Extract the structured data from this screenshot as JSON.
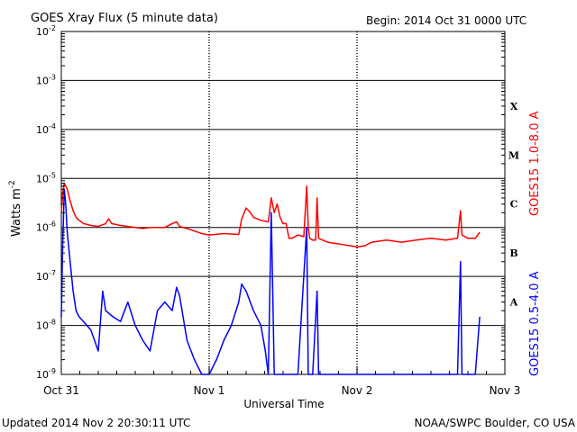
{
  "header": {
    "title": "GOES Xray Flux (5 minute data)",
    "begin": "Begin:  2014 Oct 31 0000 UTC"
  },
  "footer": {
    "updated": "Updated 2014 Nov  2 20:30:11 UTC",
    "source": "NOAA/SWPC Boulder, CO USA"
  },
  "chart_data": {
    "type": "line",
    "title": "GOES Xray Flux (5 minute data)",
    "xlabel": "Universal Time",
    "ylabel": "Watts m",
    "ylabel_sup": "-2",
    "y_scale": "log",
    "ylim": [
      1e-09,
      0.01
    ],
    "xlim": [
      0,
      3
    ],
    "x_tick_labels": [
      "Oct 31",
      "Nov 1",
      "Nov 2",
      "Nov 3"
    ],
    "y_ticks": [
      {
        "base": "10",
        "exp": "-2"
      },
      {
        "base": "10",
        "exp": "-3"
      },
      {
        "base": "10",
        "exp": "-4"
      },
      {
        "base": "10",
        "exp": "-5"
      },
      {
        "base": "10",
        "exp": "-6"
      },
      {
        "base": "10",
        "exp": "-7"
      },
      {
        "base": "10",
        "exp": "-8"
      },
      {
        "base": "10",
        "exp": "-9"
      }
    ],
    "flare_classes": [
      "X",
      "M",
      "C",
      "B",
      "A"
    ],
    "grid": true,
    "series": [
      {
        "name": "GOES15 1.0-8.0 A",
        "color": "#ff0000",
        "points": [
          [
            0.0,
            2e-06
          ],
          [
            0.01,
            5e-06
          ],
          [
            0.02,
            8e-06
          ],
          [
            0.03,
            7e-06
          ],
          [
            0.04,
            6e-06
          ],
          [
            0.06,
            3.5e-06
          ],
          [
            0.08,
            2.2e-06
          ],
          [
            0.1,
            1.6e-06
          ],
          [
            0.12,
            1.4e-06
          ],
          [
            0.15,
            1.2e-06
          ],
          [
            0.2,
            1.1e-06
          ],
          [
            0.25,
            1.05e-06
          ],
          [
            0.3,
            1.2e-06
          ],
          [
            0.32,
            1.5e-06
          ],
          [
            0.34,
            1.2e-06
          ],
          [
            0.4,
            1.1e-06
          ],
          [
            0.45,
            1.05e-06
          ],
          [
            0.5,
            1e-06
          ],
          [
            0.55,
            9.5e-07
          ],
          [
            0.6,
            1e-06
          ],
          [
            0.65,
            1e-06
          ],
          [
            0.7,
            1e-06
          ],
          [
            0.75,
            1.2e-06
          ],
          [
            0.78,
            1.3e-06
          ],
          [
            0.8,
            1.05e-06
          ],
          [
            0.85,
            9.5e-07
          ],
          [
            0.9,
            8.5e-07
          ],
          [
            0.95,
            7.5e-07
          ],
          [
            1.0,
            7e-07
          ],
          [
            1.1,
            7.5e-07
          ],
          [
            1.2,
            7.2e-07
          ],
          [
            1.22,
            1.5e-06
          ],
          [
            1.25,
            2.5e-06
          ],
          [
            1.28,
            2e-06
          ],
          [
            1.3,
            1.6e-06
          ],
          [
            1.35,
            1.4e-06
          ],
          [
            1.4,
            1.3e-06
          ],
          [
            1.42,
            4e-06
          ],
          [
            1.44,
            2e-06
          ],
          [
            1.46,
            3e-06
          ],
          [
            1.48,
            1.6e-06
          ],
          [
            1.5,
            1.2e-06
          ],
          [
            1.52,
            1.2e-06
          ],
          [
            1.54,
            6e-07
          ],
          [
            1.56,
            6e-07
          ],
          [
            1.6,
            7e-07
          ],
          [
            1.64,
            6.5e-07
          ],
          [
            1.66,
            7e-06
          ],
          [
            1.67,
            1e-06
          ],
          [
            1.68,
            6e-07
          ],
          [
            1.7,
            5.5e-07
          ],
          [
            1.72,
            5.5e-07
          ],
          [
            1.73,
            4e-06
          ],
          [
            1.74,
            6e-07
          ],
          [
            1.8,
            5e-07
          ],
          [
            1.9,
            4.5e-07
          ],
          [
            2.0,
            4e-07
          ],
          [
            2.05,
            4.2e-07
          ],
          [
            2.1,
            5e-07
          ],
          [
            2.2,
            5.5e-07
          ],
          [
            2.3,
            5e-07
          ],
          [
            2.4,
            5.5e-07
          ],
          [
            2.5,
            6e-07
          ],
          [
            2.6,
            5.5e-07
          ],
          [
            2.68,
            6e-07
          ],
          [
            2.7,
            2.2e-06
          ],
          [
            2.71,
            7e-07
          ],
          [
            2.75,
            6e-07
          ],
          [
            2.8,
            6e-07
          ],
          [
            2.83,
            8e-07
          ]
        ]
      },
      {
        "name": "GOES15 0.5-4.0 A",
        "color": "#0000ff",
        "points": [
          [
            0.0,
            1.5e-08
          ],
          [
            0.01,
            5e-07
          ],
          [
            0.02,
            6e-06
          ],
          [
            0.03,
            3e-06
          ],
          [
            0.04,
            8e-07
          ],
          [
            0.06,
            2e-07
          ],
          [
            0.08,
            5e-08
          ],
          [
            0.1,
            2e-08
          ],
          [
            0.12,
            1.5e-08
          ],
          [
            0.15,
            1.2e-08
          ],
          [
            0.2,
            8e-09
          ],
          [
            0.25,
            3e-09
          ],
          [
            0.28,
            5e-08
          ],
          [
            0.3,
            2e-08
          ],
          [
            0.35,
            1.5e-08
          ],
          [
            0.4,
            1.2e-08
          ],
          [
            0.45,
            3e-08
          ],
          [
            0.5,
            1e-08
          ],
          [
            0.55,
            5e-09
          ],
          [
            0.6,
            3e-09
          ],
          [
            0.65,
            2e-08
          ],
          [
            0.7,
            3e-08
          ],
          [
            0.75,
            2e-08
          ],
          [
            0.78,
            6e-08
          ],
          [
            0.8,
            4e-08
          ],
          [
            0.85,
            5e-09
          ],
          [
            0.9,
            2e-09
          ],
          [
            0.95,
            1e-09
          ],
          [
            1.0,
            1e-09
          ],
          [
            1.05,
            2e-09
          ],
          [
            1.1,
            5e-09
          ],
          [
            1.15,
            1e-08
          ],
          [
            1.2,
            3e-08
          ],
          [
            1.22,
            7e-08
          ],
          [
            1.25,
            5e-08
          ],
          [
            1.3,
            2e-08
          ],
          [
            1.35,
            1e-08
          ],
          [
            1.38,
            3e-09
          ],
          [
            1.4,
            1e-09
          ],
          [
            1.42,
            2e-06
          ],
          [
            1.44,
            1e-09
          ],
          [
            1.5,
            1e-09
          ],
          [
            1.55,
            1e-09
          ],
          [
            1.6,
            1e-09
          ],
          [
            1.66,
            1e-06
          ],
          [
            1.67,
            1e-09
          ],
          [
            1.7,
            1e-09
          ],
          [
            1.73,
            5e-08
          ],
          [
            1.74,
            1e-09
          ],
          [
            1.8,
            1e-09
          ],
          [
            2.0,
            1e-09
          ],
          [
            2.1,
            1e-09
          ],
          [
            2.2,
            1e-09
          ],
          [
            2.3,
            1e-09
          ],
          [
            2.4,
            1e-09
          ],
          [
            2.5,
            1e-09
          ],
          [
            2.6,
            1e-09
          ],
          [
            2.68,
            1e-09
          ],
          [
            2.7,
            2e-07
          ],
          [
            2.71,
            1e-09
          ],
          [
            2.8,
            1e-09
          ],
          [
            2.83,
            1.5e-08
          ]
        ]
      }
    ]
  }
}
